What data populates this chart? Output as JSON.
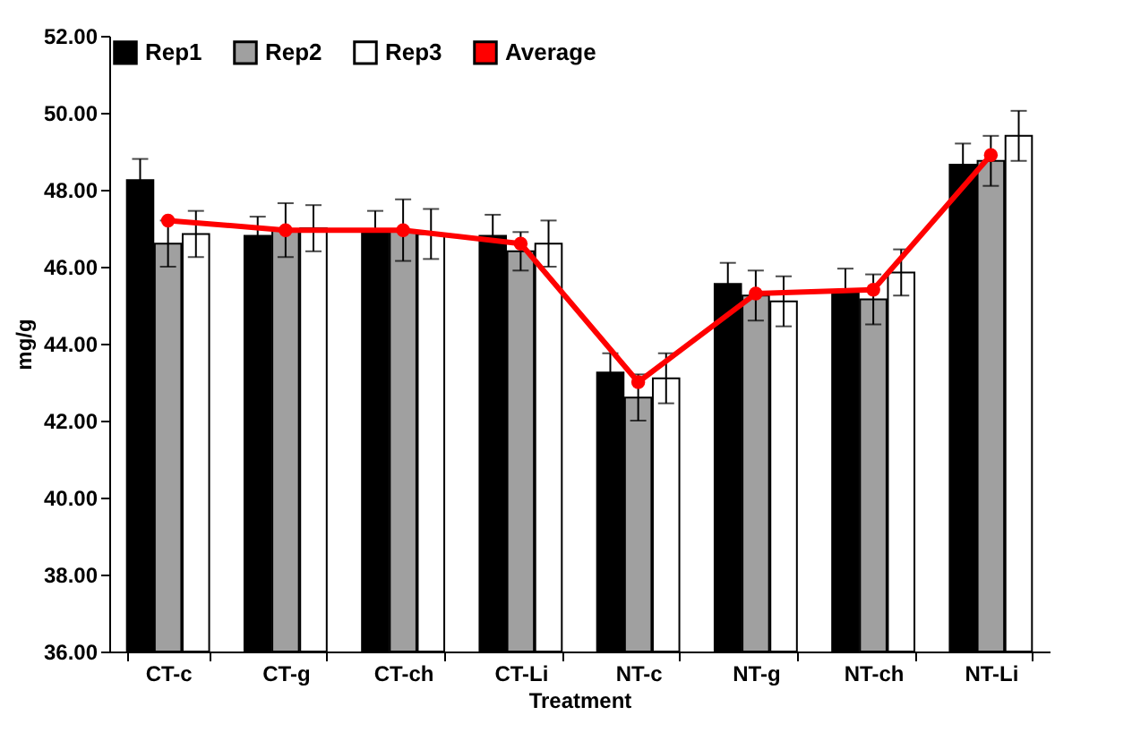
{
  "chart_data": {
    "type": "bar",
    "xlabel": "Treatment",
    "ylabel": "mg/g",
    "categories": [
      "CT-c",
      "CT-g",
      "CT-ch",
      "CT-Li",
      "NT-c",
      "NT-g",
      "NT-ch",
      "NT-Li"
    ],
    "series": [
      {
        "name": "Rep1",
        "color": "#000000",
        "values": [
          48.25,
          46.8,
          46.95,
          46.8,
          43.25,
          45.55,
          45.35,
          48.65
        ],
        "errors": [
          0.55,
          0.5,
          0.5,
          0.55,
          0.5,
          0.55,
          0.6,
          0.55
        ]
      },
      {
        "name": "Rep2",
        "color": "#a0a0a0",
        "values": [
          46.6,
          46.95,
          46.95,
          46.4,
          42.6,
          45.25,
          45.15,
          48.75
        ],
        "errors": [
          0.6,
          0.7,
          0.8,
          0.5,
          0.6,
          0.65,
          0.65,
          0.65
        ]
      },
      {
        "name": "Rep3",
        "color": "#ffffff",
        "values": [
          46.85,
          47.0,
          46.85,
          46.6,
          43.1,
          45.1,
          45.85,
          49.4
        ],
        "errors": [
          0.6,
          0.6,
          0.65,
          0.6,
          0.65,
          0.65,
          0.6,
          0.65
        ]
      },
      {
        "name": "Average",
        "type": "line",
        "color": "#ff0000",
        "values": [
          47.2,
          46.95,
          46.95,
          46.6,
          43.0,
          45.3,
          45.4,
          48.9
        ]
      }
    ],
    "ylim": [
      36,
      52
    ],
    "yticks": [
      {
        "value": 36,
        "label": "36.00"
      },
      {
        "value": 38,
        "label": "38.00"
      },
      {
        "value": 40,
        "label": "40.00"
      },
      {
        "value": 42,
        "label": "42.00"
      },
      {
        "value": 44,
        "label": "44.00"
      },
      {
        "value": 46,
        "label": "46.00"
      },
      {
        "value": 48,
        "label": "48.00"
      },
      {
        "value": 50,
        "label": "50.00"
      },
      {
        "value": 52,
        "label": "52.00"
      }
    ],
    "grid": false,
    "legend": "top left",
    "marker": "circle"
  }
}
